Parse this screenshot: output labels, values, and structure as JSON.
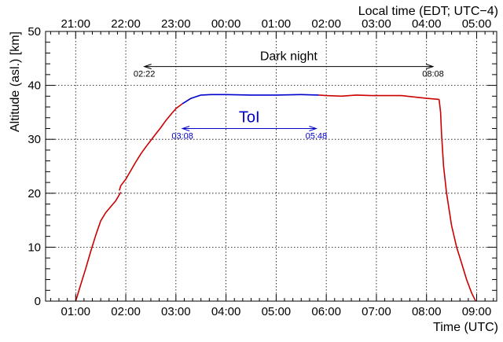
{
  "chart_data": {
    "type": "line",
    "xlabel": "Time (UTC)",
    "ylabel": "Altitude (asl.) [km]",
    "top_axis_label": "Local time (EDT; UTC−4)",
    "xlim": [
      0.4,
      9.4
    ],
    "ylim": [
      0,
      50
    ],
    "grid": true,
    "x_ticks": [
      {
        "value": 1,
        "label": "01:00"
      },
      {
        "value": 2,
        "label": "02:00"
      },
      {
        "value": 3,
        "label": "03:00"
      },
      {
        "value": 4,
        "label": "04:00"
      },
      {
        "value": 5,
        "label": "05:00"
      },
      {
        "value": 6,
        "label": "06:00"
      },
      {
        "value": 7,
        "label": "07:00"
      },
      {
        "value": 8,
        "label": "08:00"
      },
      {
        "value": 9,
        "label": "09:00"
      }
    ],
    "top_ticks": [
      {
        "value": 1,
        "label": "21:00"
      },
      {
        "value": 2,
        "label": "22:00"
      },
      {
        "value": 3,
        "label": "23:00"
      },
      {
        "value": 4,
        "label": "00:00"
      },
      {
        "value": 5,
        "label": "01:00"
      },
      {
        "value": 6,
        "label": "02:00"
      },
      {
        "value": 7,
        "label": "03:00"
      },
      {
        "value": 8,
        "label": "04:00"
      },
      {
        "value": 9,
        "label": "05:00"
      }
    ],
    "y_ticks": [
      {
        "value": 0,
        "label": "0"
      },
      {
        "value": 10,
        "label": "10"
      },
      {
        "value": 20,
        "label": "20"
      },
      {
        "value": 30,
        "label": "30"
      },
      {
        "value": 40,
        "label": "40"
      },
      {
        "value": 50,
        "label": "50"
      }
    ],
    "series": [
      {
        "color": "#cc0000",
        "segments": [
          [
            [
              1.0,
              0.0
            ],
            [
              1.1,
              3.0
            ],
            [
              1.2,
              6.0
            ],
            [
              1.3,
              9.2
            ],
            [
              1.4,
              12.2
            ],
            [
              1.5,
              14.9
            ],
            [
              1.6,
              16.4
            ],
            [
              1.7,
              17.5
            ],
            [
              1.8,
              18.6
            ],
            [
              1.9,
              20.2
            ]
          ],
          [
            [
              1.87,
              20.5
            ],
            [
              1.9,
              21.4
            ],
            [
              2.0,
              22.6
            ],
            [
              2.1,
              24.2
            ],
            [
              2.2,
              25.8
            ],
            [
              2.3,
              27.3
            ],
            [
              2.4,
              28.6
            ],
            [
              2.5,
              29.8
            ],
            [
              2.6,
              31.0
            ],
            [
              2.7,
              32.2
            ],
            [
              2.8,
              33.5
            ],
            [
              2.9,
              34.6
            ],
            [
              3.0,
              35.7
            ],
            [
              3.13,
              36.6
            ]
          ],
          [
            [
              5.85,
              38.2
            ],
            [
              6.0,
              38.1
            ],
            [
              6.3,
              38.0
            ],
            [
              6.6,
              38.2
            ],
            [
              6.9,
              38.1
            ],
            [
              7.2,
              38.1
            ],
            [
              7.5,
              38.1
            ],
            [
              7.8,
              37.8
            ],
            [
              8.0,
              37.6
            ],
            [
              8.25,
              37.4
            ]
          ],
          [
            [
              8.25,
              37.4
            ],
            [
              8.28,
              35.0
            ],
            [
              8.3,
              31.0
            ],
            [
              8.34,
              25.0
            ],
            [
              8.4,
              20.0
            ],
            [
              8.5,
              14.0
            ],
            [
              8.6,
              10.0
            ],
            [
              8.7,
              7.0
            ],
            [
              8.8,
              4.0
            ],
            [
              8.9,
              1.5
            ],
            [
              8.98,
              0.0
            ]
          ]
        ]
      },
      {
        "color": "#0000cc",
        "segments": [
          [
            [
              3.13,
              36.6
            ],
            [
              3.3,
              37.6
            ],
            [
              3.5,
              38.2
            ],
            [
              3.7,
              38.3
            ],
            [
              4.0,
              38.3
            ],
            [
              4.5,
              38.2
            ],
            [
              5.0,
              38.2
            ],
            [
              5.5,
              38.3
            ],
            [
              5.85,
              38.2
            ]
          ]
        ]
      }
    ],
    "annotations": [
      {
        "label": "Dark night",
        "start": 2.37,
        "end": 8.13,
        "y": 43.5,
        "start_label": "02:22",
        "end_label": "08:08",
        "color": "#000000"
      },
      {
        "label": "ToI",
        "start": 3.13,
        "end": 5.8,
        "y": 32.0,
        "start_label": "03:08",
        "end_label": "05:48",
        "color": "#0000cc"
      }
    ]
  }
}
